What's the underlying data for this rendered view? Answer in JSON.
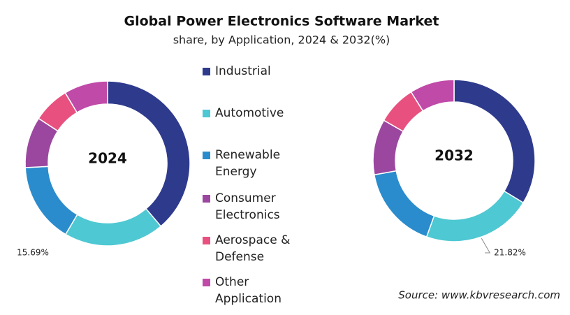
{
  "title": "Global Power Electronics Software Market",
  "subtitle": "share, by Application, 2024 & 2032(%)",
  "source": "Source: www.kbvresearch.com",
  "chart_data": [
    {
      "type": "pie",
      "title": "2024",
      "categories": [
        "Industrial",
        "Automotive",
        "Renewable Energy",
        "Consumer Electronics",
        "Aerospace & Defense",
        "Other Application"
      ],
      "colors": [
        "#2e3a8c",
        "#4ec8d2",
        "#2a8ccc",
        "#9b479f",
        "#e8517f",
        "#c04aa8"
      ],
      "values": [
        38.8,
        19.7,
        15.69,
        10.0,
        7.2,
        8.6
      ],
      "value_labels": [
        null,
        null,
        "15.69%",
        null,
        null,
        null
      ]
    },
    {
      "type": "pie",
      "title": "2032",
      "values": [
        33.7,
        21.82,
        16.7,
        11.1,
        7.8,
        8.9
      ],
      "value_labels": [
        null,
        "21.82%",
        null,
        null,
        null,
        null
      ]
    }
  ]
}
